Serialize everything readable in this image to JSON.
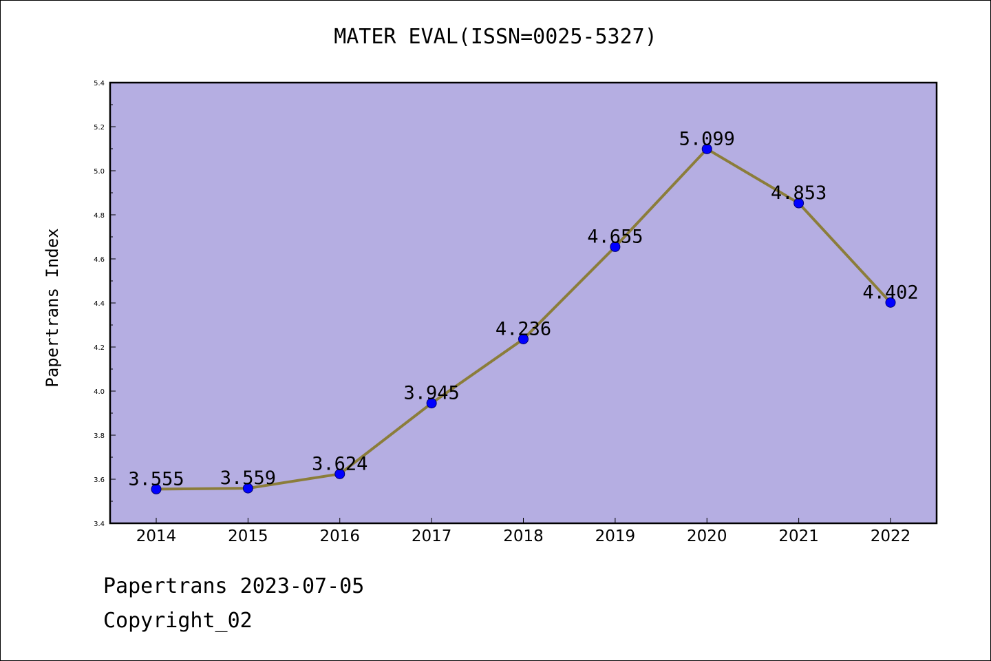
{
  "chart_data": {
    "type": "line",
    "title": "MATER EVAL(ISSN=0025-5327)",
    "xlabel": "",
    "ylabel": "Papertrans Index",
    "categories": [
      "2014",
      "2015",
      "2016",
      "2017",
      "2018",
      "2019",
      "2020",
      "2021",
      "2022"
    ],
    "series": [
      {
        "values": [
          3.555,
          3.559,
          3.624,
          3.945,
          4.236,
          4.655,
          5.099,
          4.853,
          4.402
        ],
        "data_labels": [
          "3.555",
          "3.559",
          "3.624",
          "3.945",
          "4.236",
          "4.655",
          "5.099",
          "4.853",
          "4.402"
        ]
      }
    ],
    "ylim": [
      3.4,
      5.4
    ],
    "y_ticks": [
      "3.4",
      "3.6",
      "3.8",
      "4.0",
      "4.2",
      "4.4",
      "4.6",
      "4.8",
      "5.0",
      "5.2",
      "5.4"
    ],
    "grid": false,
    "legend": "none",
    "colors": {
      "plot_background": "#b5aee2",
      "line": "#8b7d3a",
      "marker": "#0000ff"
    }
  },
  "footer": {
    "line1": "Papertrans 2023-07-05",
    "line2": "Copyright_02"
  }
}
